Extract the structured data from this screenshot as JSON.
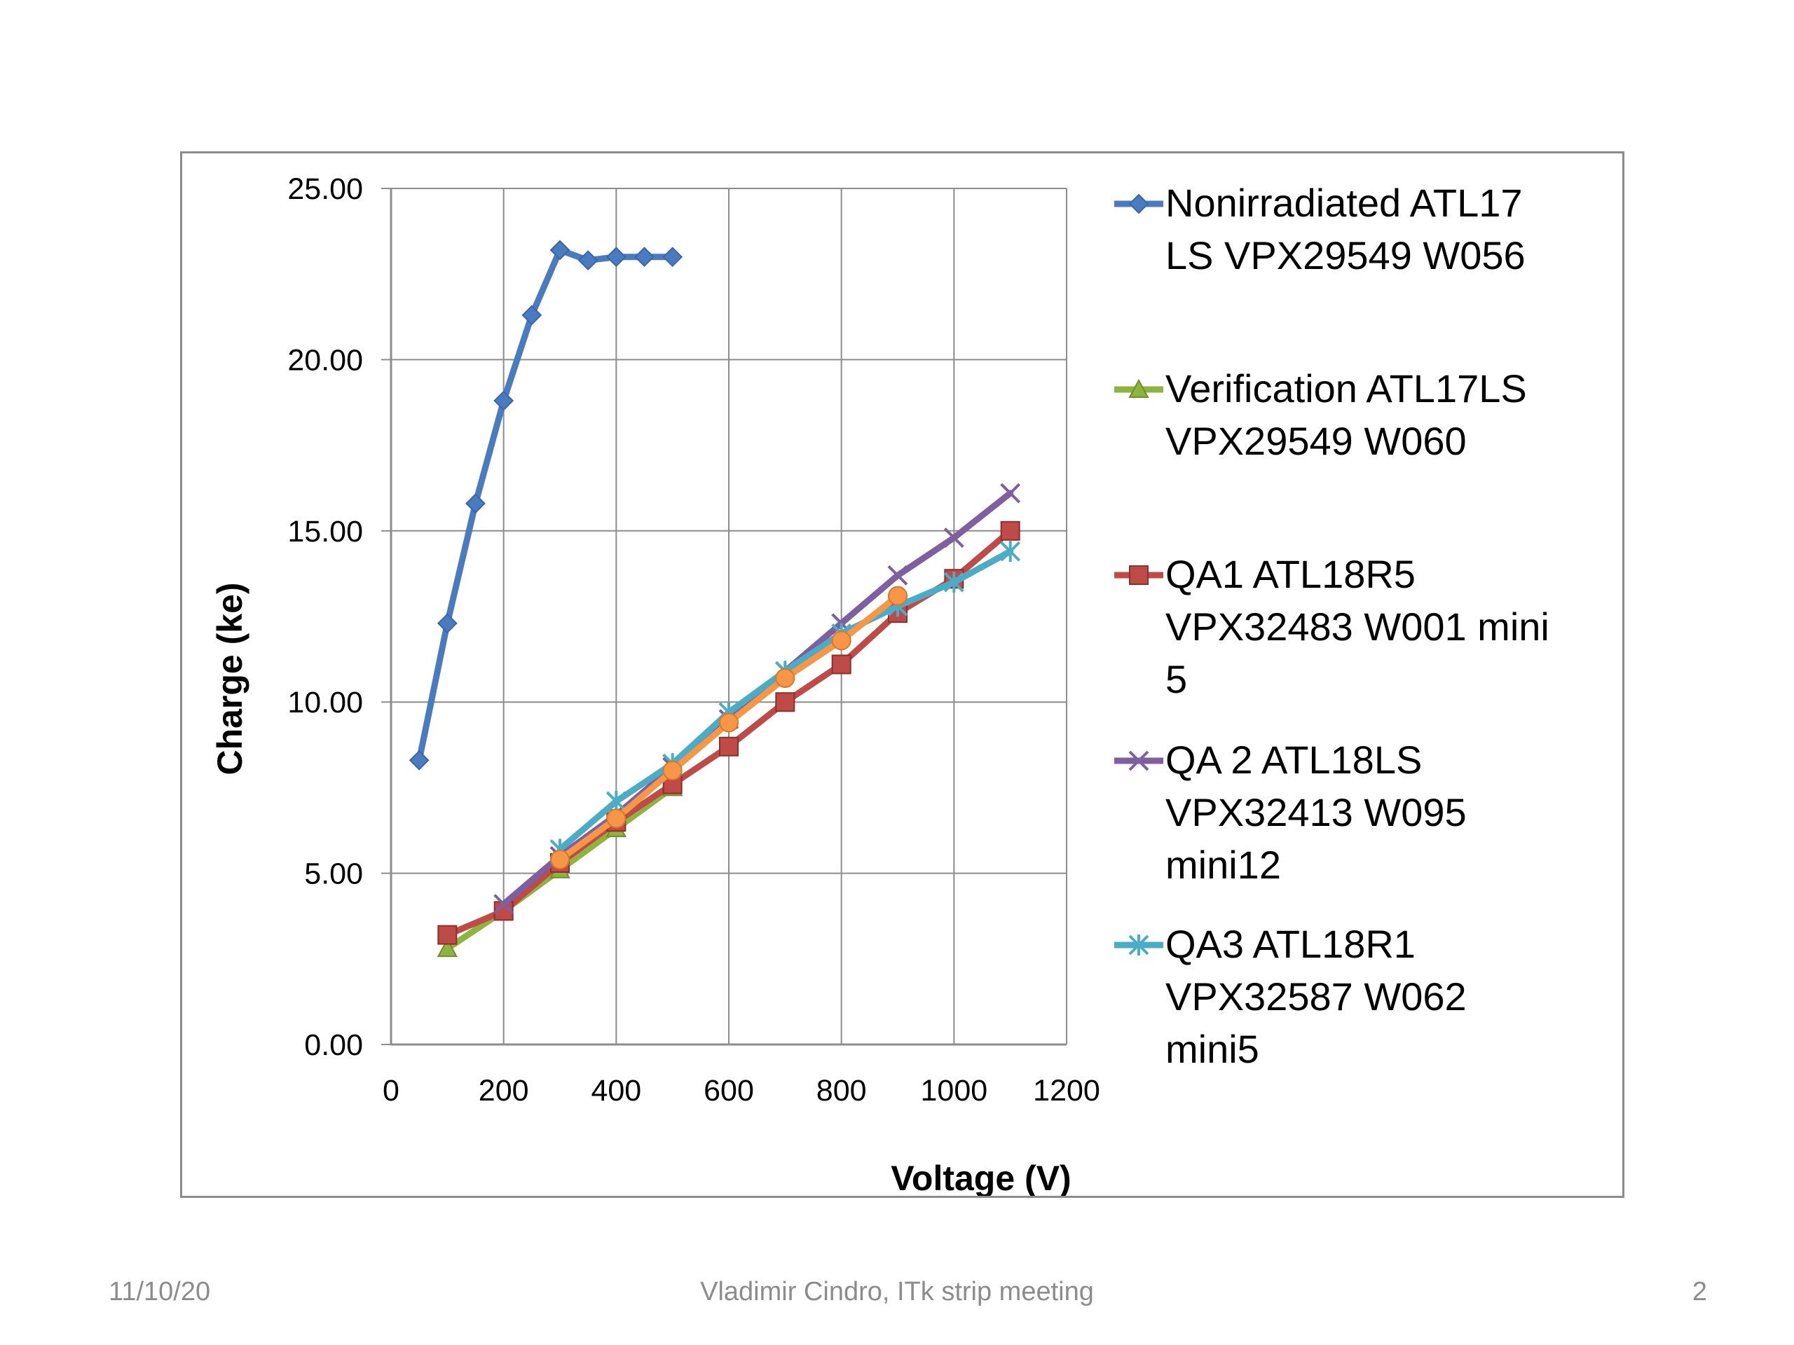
{
  "footer": {
    "date": "11/10/20",
    "center": "Vladimir Cindro, ITk strip meeting",
    "page": "2"
  },
  "chart_data": {
    "type": "line",
    "xlabel": "Voltage (V)",
    "ylabel": "Charge (ke)",
    "xlim": [
      0,
      1200
    ],
    "ylim": [
      0,
      25
    ],
    "x_ticks": [
      "0",
      "200",
      "400",
      "600",
      "800",
      "1000",
      "1200"
    ],
    "y_ticks": [
      "0.00",
      "5.00",
      "10.00",
      "15.00",
      "20.00",
      "25.00"
    ],
    "grid": true,
    "legend_position": "right",
    "series": [
      {
        "name": "Nonirradiated ATL17 LS VPX29549 W056",
        "legend_lines": [
          "Nonirradiated ATL17",
          "LS VPX29549 W056"
        ],
        "color": "#4a7bbf",
        "marker": "diamond",
        "x": [
          50,
          100,
          150,
          200,
          250,
          300,
          350,
          400,
          450,
          500
        ],
        "y": [
          8.3,
          12.3,
          15.8,
          18.8,
          21.3,
          23.2,
          22.9,
          23.0,
          23.0,
          23.0
        ]
      },
      {
        "name": "Verification ATL17LS VPX29549 W060",
        "legend_lines": [
          "Verification ATL17LS",
          "VPX29549 W060"
        ],
        "color": "#8fb33f",
        "marker": "triangle",
        "x": [
          100,
          200,
          300,
          400,
          500
        ],
        "y": [
          2.8,
          3.9,
          5.1,
          6.3,
          7.5
        ]
      },
      {
        "name": "QA1 ATL18R5 VPX32483 W001 mini 5",
        "legend_lines": [
          "QA1 ATL18R5",
          "VPX32483 W001 mini",
          "5"
        ],
        "color": "#be4b48",
        "marker": "square",
        "x": [
          100,
          200,
          300,
          400,
          500,
          600,
          700,
          800,
          900,
          1000,
          1100
        ],
        "y": [
          3.2,
          3.9,
          5.3,
          6.5,
          7.6,
          8.7,
          10.0,
          11.1,
          12.6,
          13.6,
          15.0
        ]
      },
      {
        "name": "QA 2 ATL18LS VPX32413 W095 mini12",
        "legend_lines": [
          "QA 2 ATL18LS",
          "VPX32413 W095",
          "mini12"
        ],
        "color": "#7e5fa0",
        "marker": "x",
        "x": [
          200,
          300,
          400,
          500,
          600,
          700,
          800,
          900,
          1000,
          1100
        ],
        "y": [
          4.1,
          5.5,
          6.7,
          8.1,
          9.5,
          10.9,
          12.3,
          13.7,
          14.8,
          16.1
        ]
      },
      {
        "name": "QA3 ATL18R1 VPX32587 W062 mini5",
        "legend_lines": [
          "QA3 ATL18R1",
          "VPX32587 W062",
          "mini5"
        ],
        "color": "#4bacc6",
        "marker": "star",
        "x": [
          300,
          400,
          500,
          600,
          700,
          800,
          900,
          1000,
          1100
        ],
        "y": [
          5.7,
          7.1,
          8.2,
          9.7,
          10.9,
          12.0,
          12.8,
          13.5,
          14.4
        ]
      },
      {
        "name": "",
        "color": "#f79646",
        "marker": "circle",
        "x": [
          300,
          400,
          500,
          600,
          700,
          800,
          900
        ],
        "y": [
          5.4,
          6.6,
          8.0,
          9.4,
          10.7,
          11.8,
          13.1
        ]
      }
    ]
  }
}
